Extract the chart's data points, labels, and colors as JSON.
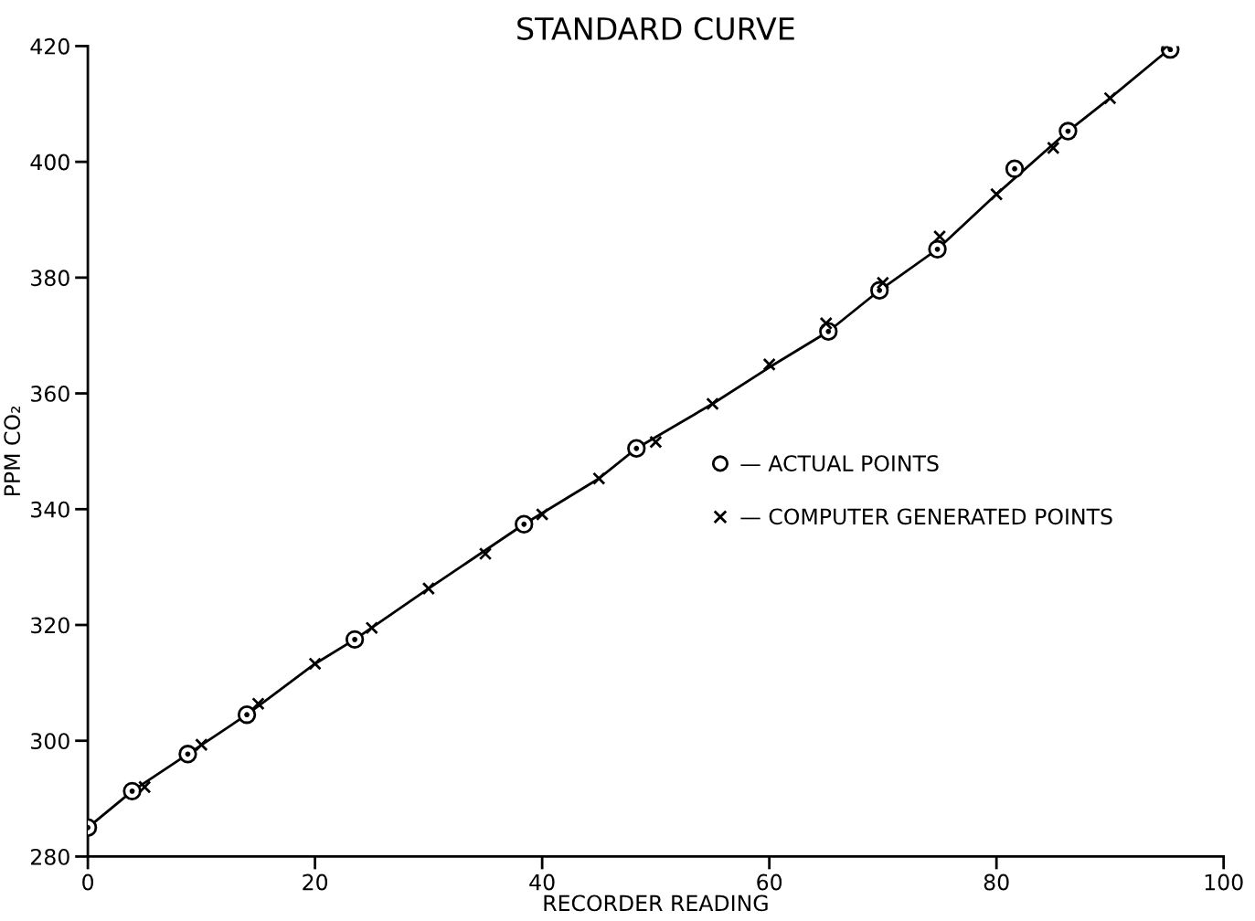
{
  "chart_data": {
    "type": "scatter",
    "title": "STANDARD CURVE",
    "xlabel": "RECORDER READING",
    "ylabel": "PPM CO₂",
    "xlim": [
      0,
      100
    ],
    "xticks": [
      0,
      20,
      40,
      60,
      80,
      100
    ],
    "ylim": [
      280,
      420
    ],
    "yticks": [
      280,
      300,
      320,
      340,
      360,
      380,
      400,
      420
    ],
    "grid": false,
    "legend": "right",
    "series": [
      {
        "type": "line",
        "color": "#000000",
        "line_style": "solid",
        "marker": "none",
        "x": [
          0,
          3.9,
          8.8,
          14.0,
          20,
          23.5,
          30,
          38.4,
          45,
          48.3,
          55,
          60,
          65.2,
          69.7,
          74.8,
          80,
          86.3,
          90,
          95.3
        ],
        "values": [
          285,
          291.3,
          297.7,
          304.5,
          313.3,
          317.5,
          326.3,
          337.4,
          345.3,
          350.5,
          358.2,
          364.5,
          370.7,
          377.8,
          384.9,
          394.4,
          405.3,
          411,
          419.6
        ]
      },
      {
        "name": "— ACTUAL POINTS",
        "color": "#000000",
        "marker": "circle",
        "x": [
          0,
          3.9,
          8.8,
          14.0,
          23.5,
          38.4,
          48.3,
          65.2,
          69.7,
          74.8,
          81.6,
          86.3,
          95.3
        ],
        "values": [
          285,
          291.3,
          297.7,
          304.5,
          317.5,
          337.4,
          350.5,
          370.7,
          377.8,
          384.9,
          398.8,
          405.3,
          419.4
        ]
      },
      {
        "name": "— COMPUTER GENERATED POINTS",
        "color": "#000000",
        "marker": "cross",
        "x": [
          5,
          10,
          15,
          20,
          25,
          30,
          35,
          40,
          45,
          50,
          55,
          60,
          65,
          70,
          75,
          80,
          85,
          90,
          95
        ],
        "values": [
          292.0,
          299.3,
          306.4,
          313.3,
          319.5,
          326.3,
          332.3,
          339.1,
          345.3,
          351.6,
          358.2,
          365.0,
          372.1,
          379.1,
          387.1,
          394.4,
          402.4,
          411.0,
          420
        ]
      }
    ]
  }
}
